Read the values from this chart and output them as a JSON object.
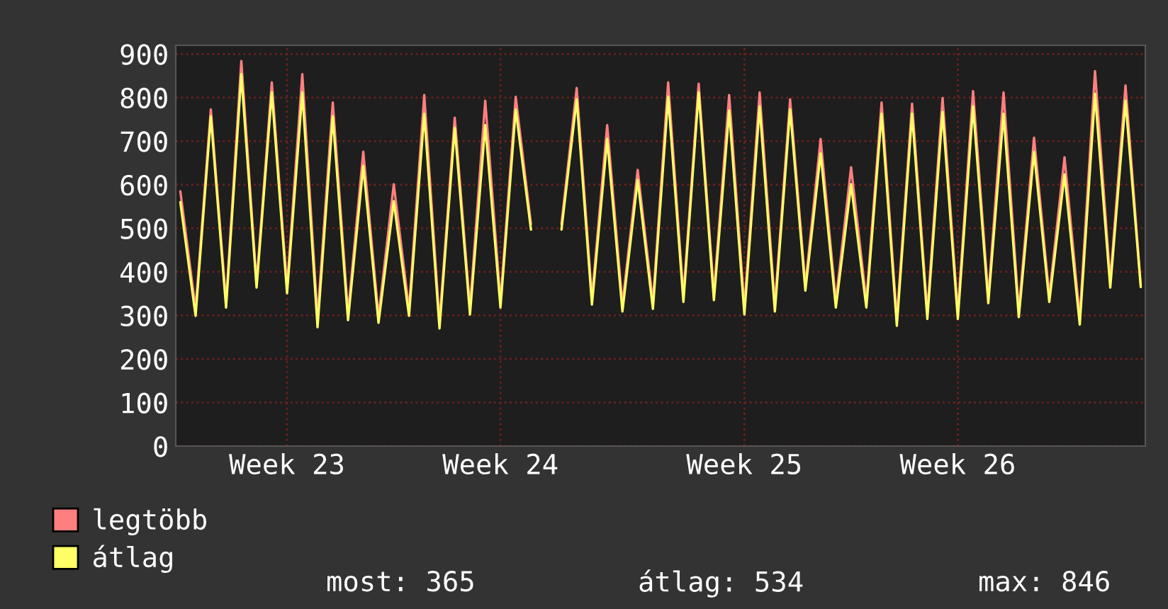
{
  "chart_data": {
    "type": "line",
    "categories": [
      null,
      null,
      null,
      null,
      null,
      null,
      null,
      "Week 23",
      null,
      null,
      null,
      null,
      null,
      null,
      null,
      null,
      null,
      null,
      null,
      null,
      null,
      "Week 24",
      null,
      null,
      null,
      null,
      null,
      null,
      null,
      null,
      null,
      null,
      null,
      null,
      null,
      null,
      null,
      "Week 25",
      null,
      null,
      null,
      null,
      null,
      null,
      null,
      null,
      null,
      null,
      null,
      null,
      null,
      "Week 26",
      null,
      null,
      null,
      null,
      null,
      null,
      null,
      null,
      null,
      null,
      null,
      null
    ],
    "series": [
      {
        "name": "legtöbb",
        "color": "#ff7f7f",
        "values": [
          585,
          315,
          773,
          330,
          884,
          375,
          835,
          365,
          854,
          295,
          789,
          305,
          676,
          298,
          601,
          315,
          806,
          285,
          754,
          318,
          793,
          332,
          802,
          510,
          null,
          510,
          822,
          340,
          737,
          325,
          634,
          330,
          835,
          345,
          832,
          350,
          806,
          318,
          812,
          325,
          796,
          370,
          705,
          333,
          640,
          333,
          789,
          292,
          786,
          307,
          799,
          307,
          815,
          342,
          812,
          311,
          708,
          345,
          663,
          295,
          861,
          378,
          828,
          370
        ]
      },
      {
        "name": "átlag",
        "color": "#ffff66",
        "values": [
          560,
          299,
          757,
          318,
          854,
          364,
          812,
          351,
          812,
          273,
          757,
          289,
          643,
          283,
          562,
          299,
          763,
          270,
          731,
          302,
          737,
          318,
          773,
          497,
          null,
          497,
          796,
          325,
          705,
          309,
          611,
          315,
          802,
          331,
          812,
          335,
          770,
          302,
          780,
          309,
          773,
          357,
          672,
          318,
          601,
          318,
          763,
          276,
          763,
          292,
          767,
          292,
          780,
          328,
          763,
          296,
          676,
          331,
          624,
          279,
          809,
          364,
          793,
          365
        ]
      }
    ],
    "ylim": [
      0,
      920
    ],
    "yticks": [
      0,
      100,
      200,
      300,
      400,
      500,
      600,
      700,
      800,
      900
    ],
    "grid": true,
    "legend": "bottom left",
    "marker": "none",
    "line_style": "solid",
    "annotations": [
      "most: 365",
      "átlag: 534",
      "max: 846"
    ]
  }
}
